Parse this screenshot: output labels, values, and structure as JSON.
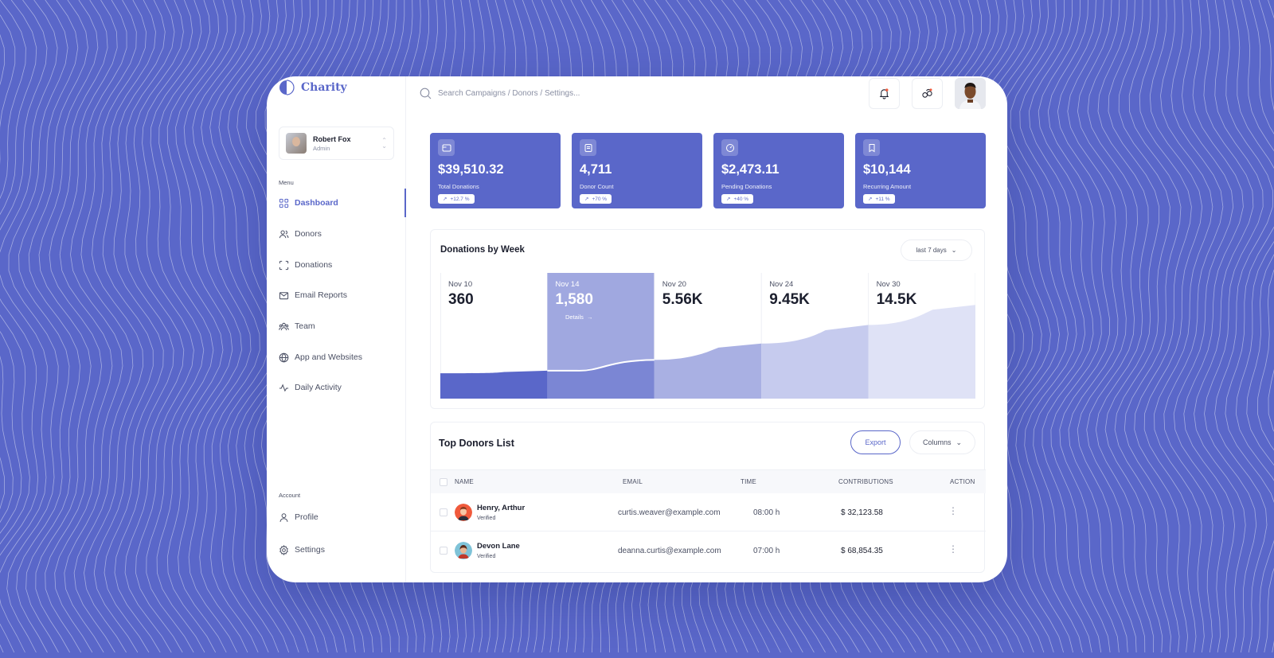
{
  "brand": {
    "name": "Charity"
  },
  "user": {
    "name": "Robert Fox",
    "role": "Admin"
  },
  "sidebar": {
    "menu_label": "Menu",
    "items": [
      {
        "label": "Dashboard",
        "icon": "grid-icon",
        "active": true
      },
      {
        "label": "Donors",
        "icon": "users-icon"
      },
      {
        "label": "Donations",
        "icon": "scan-icon"
      },
      {
        "label": "Email Reports",
        "icon": "mail-icon"
      },
      {
        "label": "Team",
        "icon": "team-icon"
      },
      {
        "label": "App and Websites",
        "icon": "globe-icon"
      },
      {
        "label": "Daily Activity",
        "icon": "activity-icon"
      }
    ],
    "account_label": "Account",
    "account_items": [
      {
        "label": "Profile",
        "icon": "user-icon"
      },
      {
        "label": "Settings",
        "icon": "gear-icon"
      }
    ]
  },
  "search": {
    "placeholder": "Search Campaigns / Donors / Settings..."
  },
  "stats": [
    {
      "value": "$39,510.32",
      "label": "Total Donations",
      "change": "+12.7 %",
      "icon": "wallet-icon"
    },
    {
      "value": "4,711",
      "label": "Donor Count",
      "change": "+70 %",
      "icon": "clipboard-icon"
    },
    {
      "value": "$2,473.11",
      "label": "Pending Donations",
      "change": "+40 %",
      "icon": "gauge-icon"
    },
    {
      "value": "$10,144",
      "label": "Recurring Amount",
      "change": "+11 %",
      "icon": "bookmark-icon"
    }
  ],
  "chart_data": {
    "type": "area",
    "title": "Donations by Week",
    "range_label": "last 7 days",
    "categories": [
      "Nov 10",
      "Nov 14",
      "Nov 20",
      "Nov 24",
      "Nov 30"
    ],
    "labels": [
      "360",
      "1,580",
      "5.56K",
      "9.45K",
      "14.5K"
    ],
    "values": [
      360,
      1580,
      5560,
      9450,
      14500
    ],
    "highlight_index": 1,
    "details_label": "Details",
    "colors": [
      "#5a67c9",
      "#7b86d4",
      "#a9b0e3",
      "#c6cbee",
      "#dfe2f6"
    ]
  },
  "donors": {
    "title": "Top Donors List",
    "export_label": "Export",
    "columns_label": "Columns",
    "headers": [
      "NAME",
      "EMAIL",
      "TIME",
      "CONTRIBUTIONS",
      "ACTION"
    ],
    "rows": [
      {
        "name": "Henry, Arthur",
        "status": "Verified",
        "email": "curtis.weaver@example.com",
        "time": "08:00 h",
        "amount": "$ 32,123.58",
        "avatar_color": "#f05a3c"
      },
      {
        "name": "Devon Lane",
        "status": "Verified",
        "email": "deanna.curtis@example.com",
        "time": "07:00 h",
        "amount": "$ 68,854.35",
        "avatar_color": "#7fc3d8"
      }
    ]
  }
}
